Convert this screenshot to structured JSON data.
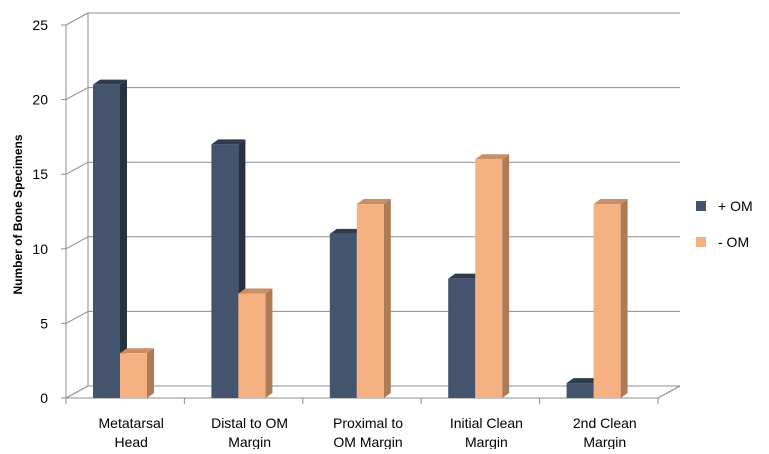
{
  "chart_data": {
    "type": "bar",
    "categories": [
      [
        "Metatarsal",
        "Head"
      ],
      [
        "Distal to OM",
        "Margin"
      ],
      [
        "Proximal to",
        "OM Margin"
      ],
      [
        "Initial Clean",
        "Margin"
      ],
      [
        "2nd Clean",
        "Margin"
      ]
    ],
    "series": [
      {
        "name": "+ OM",
        "values": [
          21,
          17,
          11,
          8,
          1
        ]
      },
      {
        "name": "- OM",
        "values": [
          3,
          7,
          13,
          16,
          13
        ]
      }
    ],
    "xlabel": "",
    "ylabel": "Number of Bone Specimens",
    "ylim": [
      0,
      25
    ],
    "yticks": [
      0,
      5,
      10,
      15,
      20,
      25
    ],
    "grid": true,
    "legend_position": "right",
    "style": "3d-clustered-column",
    "colors": {
      "series_1": {
        "front": "#44546E",
        "side": "#27323F",
        "top": "#2F3C4D"
      },
      "series_2": {
        "front": "#F6B183",
        "side": "#AD7B56",
        "top": "#C98E65"
      },
      "grid": "#8C8C8C"
    }
  },
  "legend": {
    "items": [
      {
        "label": "+ OM",
        "color": "#44546E"
      },
      {
        "label": "- OM",
        "color": "#F6B183"
      }
    ]
  }
}
